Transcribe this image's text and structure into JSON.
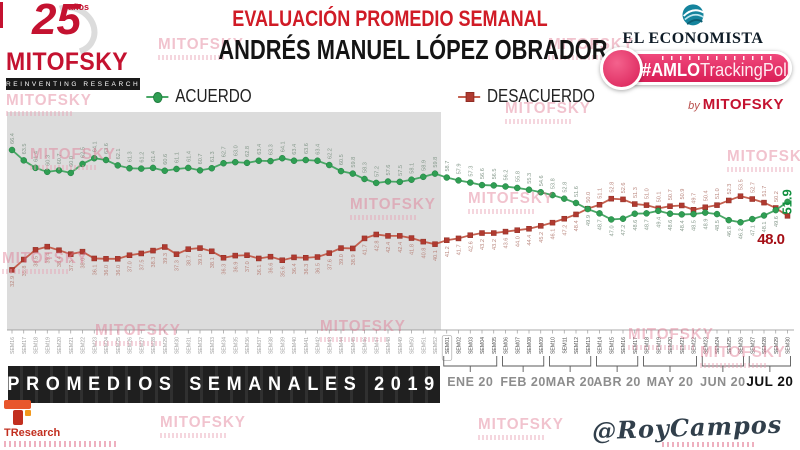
{
  "header": {
    "logo": {
      "years": "25",
      "anios": "años",
      "brand": "MITOFSKY",
      "tagline": "REINVENTING RESEARCH"
    },
    "title_line1": "EVALUACIÓN PROMEDIO SEMANAL",
    "title_line2": "ANDRÉS MANUEL LÓPEZ OBRADOR",
    "right": {
      "economista": "EL ECONOMISTA",
      "badge_hash": "#AMLO",
      "badge_rest": "TrackingPoll",
      "by": "by",
      "by_brand": "MITOFSKY"
    }
  },
  "legend": {
    "items": [
      {
        "label": "ACUERDO",
        "color": "#2f9e53",
        "marker": "circle"
      },
      {
        "label": "DESACUERDO",
        "color": "#b03a30",
        "marker": "square"
      }
    ]
  },
  "banner": {
    "text": "PROMEDIOS SEMANALES 2019"
  },
  "footer": {
    "tresearch": "TResearch",
    "handle": "@RoyCampos"
  },
  "watermark": {
    "text": "MITOFSKY",
    "color": "#e0718d"
  },
  "colors": {
    "accent_red": "#d01b26",
    "banner_bg": "#262626",
    "gray_region": "#dcdcdc",
    "badge_pink": "#e73064",
    "economista_teal": "#15849d"
  },
  "chart_data": {
    "type": "line",
    "title": "EVALUACIÓN PROMEDIO SEMANAL",
    "subtitle": "ANDRÉS MANUEL LÓPEZ OBRADOR",
    "ylim": [
      30,
      70
    ],
    "unit": "%",
    "grid": false,
    "legend_position": "top",
    "region_2019_label": "PROMEDIOS SEMANALES 2019",
    "categories_2019": [
      "SEM16",
      "SEM17",
      "SEM18",
      "SEM19",
      "SEM20",
      "SEM21",
      "SEM22",
      "SEM23",
      "SEM24",
      "SEM25",
      "SEM26",
      "SEM27",
      "SEM28",
      "SEM29",
      "SEM30",
      "SEM31",
      "SEM32",
      "SEM33",
      "SEM34",
      "SEM35",
      "SEM36",
      "SEM37",
      "SEM38",
      "SEM39",
      "SEM40",
      "SEM41",
      "SEM42",
      "SEM43",
      "SEM44",
      "SEM45",
      "SEM46",
      "SEM47",
      "SEM48",
      "SEM49",
      "SEM50",
      "SEM51",
      "SEM52"
    ],
    "categories_2020": [
      "SEM01",
      "SEM02",
      "SEM03",
      "SEM04",
      "SEM05",
      "SEM06",
      "SEM07",
      "SEM08",
      "SEM09",
      "SEM10",
      "SEM11",
      "SEM12",
      "SEM13",
      "SEM14",
      "SEM15",
      "SEM16",
      "SEM17",
      "SEM18",
      "SEM19",
      "SEM20",
      "SEM21",
      "SEM22",
      "SEM23",
      "SEM24",
      "SEM25",
      "SEM26",
      "SEM27",
      "SEM28",
      "SEM29",
      "SEM30"
    ],
    "months_2020": [
      {
        "label": "ENE 20",
        "from": 0,
        "to": 4,
        "bold": false
      },
      {
        "label": "FEB 20",
        "from": 5,
        "to": 8,
        "bold": false
      },
      {
        "label": "MAR 20",
        "from": 9,
        "to": 12,
        "bold": false
      },
      {
        "label": "ABR 20",
        "from": 13,
        "to": 16,
        "bold": false
      },
      {
        "label": "MAY 20",
        "from": 17,
        "to": 21,
        "bold": false
      },
      {
        "label": "JUN 20",
        "from": 22,
        "to": 25,
        "bold": false
      },
      {
        "label": "JUL 20",
        "from": 26,
        "to": 29,
        "bold": true
      }
    ],
    "series": [
      {
        "name": "ACUERDO",
        "marker": "circle",
        "color": "#2f9e53",
        "line_color": "#49a766",
        "label_color": "#84988a",
        "values_2019": [
          66.4,
          63.5,
          61.4,
          60.3,
          60.7,
          60.0,
          62.5,
          64.1,
          63.6,
          62.1,
          61.3,
          61.2,
          61.4,
          60.6,
          61.1,
          61.4,
          60.7,
          61.3,
          62.7,
          63.0,
          62.8,
          63.4,
          63.3,
          64.1,
          63.4,
          63.6,
          63.4,
          62.2,
          60.5,
          59.8,
          58.3,
          57.2,
          57.6,
          57.5,
          58.1,
          58.9,
          59.8
        ],
        "values_2020": [
          58.7,
          57.9,
          57.3,
          56.6,
          56.5,
          56.2,
          55.8,
          55.3,
          54.6,
          53.8,
          52.8,
          51.6,
          49.9,
          48.7,
          47.0,
          47.2,
          48.6,
          48.7,
          49.4,
          48.6,
          48.4,
          48.5,
          48.9,
          48.5,
          46.8,
          46.2,
          47.1,
          48.1,
          49.6,
          51.9
        ],
        "final_label": "51.9",
        "final_label_color": "#12903f"
      },
      {
        "name": "DESACUERDO",
        "marker": "square",
        "color": "#b03a30",
        "line_color": "#c4604f",
        "label_color": "#b9857c",
        "values_2019": [
          32.9,
          35.8,
          38.5,
          39.4,
          38.4,
          37.3,
          38.0,
          36.1,
          36.0,
          36.0,
          37.0,
          37.5,
          38.3,
          39.3,
          37.3,
          38.7,
          39.0,
          38.1,
          36.3,
          36.9,
          37.0,
          36.1,
          36.6,
          35.6,
          36.4,
          36.3,
          36.5,
          37.6,
          39.0,
          38.9,
          41.7,
          42.8,
          42.4,
          42.4,
          41.8,
          40.8,
          40.1
        ],
        "values_2020": [
          41.2,
          41.7,
          42.6,
          43.2,
          43.2,
          43.6,
          44.0,
          44.4,
          45.2,
          46.1,
          47.2,
          48.4,
          50.0,
          51.1,
          52.8,
          52.6,
          51.3,
          51.0,
          50.1,
          50.7,
          50.9,
          49.7,
          50.4,
          51.0,
          52.3,
          53.5,
          52.7,
          51.7,
          50.2,
          48.0
        ],
        "final_label": "48.0",
        "final_label_color": "#a50f16"
      }
    ]
  }
}
